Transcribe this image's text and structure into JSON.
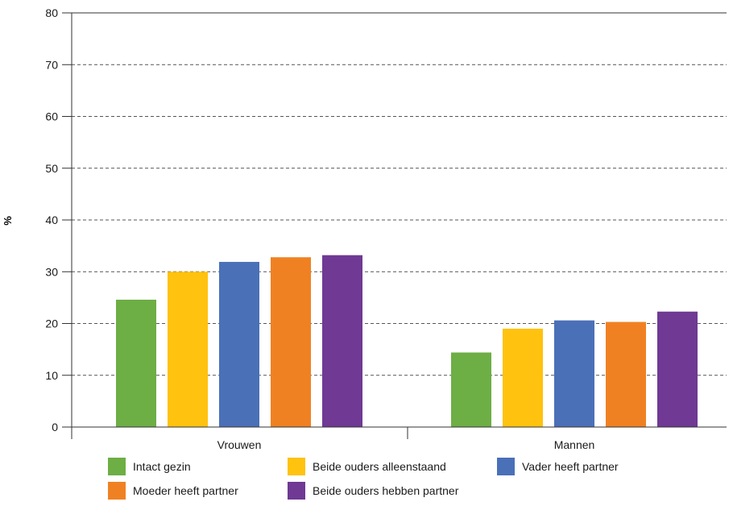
{
  "chart_data": {
    "type": "bar",
    "categories": [
      "Vrouwen",
      "Mannen"
    ],
    "series": [
      {
        "name": "Intact gezin",
        "color": "#6DAE45",
        "values": [
          24.6,
          14.4
        ]
      },
      {
        "name": "Beide ouders alleenstaand",
        "color": "#FFC20E",
        "values": [
          30.0,
          19.0
        ]
      },
      {
        "name": "Vader heeft partner",
        "color": "#4A70B8",
        "values": [
          31.9,
          20.6
        ]
      },
      {
        "name": "Moeder heeft partner",
        "color": "#F08122",
        "values": [
          32.8,
          20.3
        ]
      },
      {
        "name": "Beide ouders hebben partner",
        "color": "#6F3994",
        "values": [
          33.2,
          22.3
        ]
      }
    ],
    "ylabel": "%",
    "ylim": [
      0,
      80
    ],
    "yticks": [
      0,
      10,
      20,
      30,
      40,
      50,
      60,
      70,
      80
    ],
    "grid": "dashed horizontal",
    "legend_position": "bottom"
  }
}
